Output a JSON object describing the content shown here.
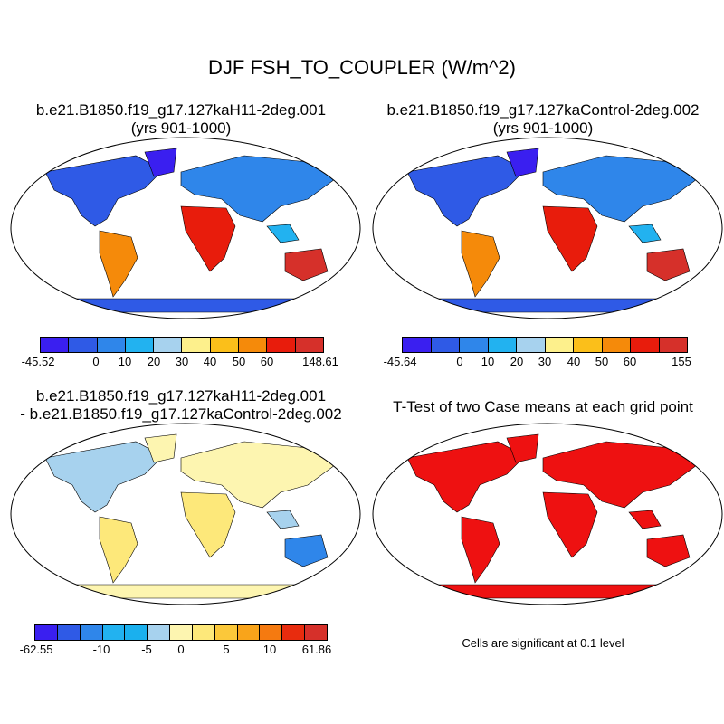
{
  "main_title": "DJF FSH_TO_COUPLER (W/m^2)",
  "panels": [
    {
      "title_line1": "b.e21.B1850.f19_g17.127kaH11-2deg.001",
      "title_line2": "(yrs 901-1000)"
    },
    {
      "title_line1": "b.e21.B1850.f19_g17.127kaControl-2deg.002",
      "title_line2": "(yrs 901-1000)"
    },
    {
      "title_line1": "b.e21.B1850.f19_g17.127kaH11-2deg.001",
      "title_line2": "- b.e21.B1850.f19_g17.127kaControl-2deg.002"
    },
    {
      "title_line1": "T-Test of two Case means at each grid point"
    }
  ],
  "colorbars": [
    {
      "colors": [
        "#3a1ff0",
        "#2f5ae6",
        "#2f86ea",
        "#22b2f0",
        "#a7d2ee",
        "#fdf08c",
        "#fbbf1a",
        "#f58a0a",
        "#e81c0c",
        "#d6302a"
      ],
      "ticks": [
        "-45.52",
        "0",
        "10",
        "20",
        "30",
        "40",
        "50",
        "60",
        "148.61"
      ]
    },
    {
      "colors": [
        "#3a1ff0",
        "#2f5ae6",
        "#2f86ea",
        "#22b2f0",
        "#a7d2ee",
        "#fdf08c",
        "#fbbf1a",
        "#f58a0a",
        "#e81c0c",
        "#d6302a"
      ],
      "ticks": [
        "-45.64",
        "0",
        "10",
        "20",
        "30",
        "40",
        "50",
        "60",
        "155"
      ]
    },
    {
      "colors": [
        "#3a1ff0",
        "#2f5ae6",
        "#2f86ea",
        "#22b2f0",
        "#1ab0ee",
        "#a7d2ee",
        "#fdf5b0",
        "#fde87a",
        "#fbc83a",
        "#f9a41a",
        "#f57a10",
        "#e82c0e",
        "#d6302a"
      ],
      "ticks": [
        "-62.55",
        "-10",
        "-5",
        "0",
        "5",
        "10",
        "61.86"
      ]
    }
  ],
  "significance_note": "Cells are significant at 0.1 level",
  "colors": {
    "ocean": "#ffffff",
    "significant": "#ee1111",
    "coast": "#000000"
  }
}
